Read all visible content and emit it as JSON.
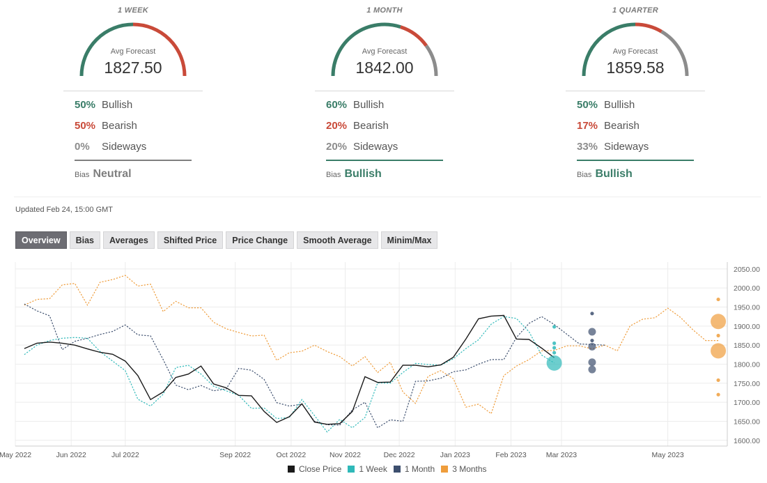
{
  "forecasts": [
    {
      "period": "1 WEEK",
      "avg_label": "Avg Forecast",
      "avg_value": "1827.50",
      "bullish": {
        "pct": "50%",
        "label": "Bullish",
        "value": 50
      },
      "bearish": {
        "pct": "50%",
        "label": "Bearish",
        "value": 50
      },
      "sideways": {
        "pct": "0%",
        "label": "Sideways",
        "value": 0
      },
      "bias_label": "Bias",
      "bias_value": "Neutral",
      "bias_color": "#7f7f7f"
    },
    {
      "period": "1 MONTH",
      "avg_label": "Avg Forecast",
      "avg_value": "1842.00",
      "bullish": {
        "pct": "60%",
        "label": "Bullish",
        "value": 60
      },
      "bearish": {
        "pct": "20%",
        "label": "Bearish",
        "value": 20
      },
      "sideways": {
        "pct": "20%",
        "label": "Sideways",
        "value": 20
      },
      "bias_label": "Bias",
      "bias_value": "Bullish",
      "bias_color": "#3a7d68"
    },
    {
      "period": "1 QUARTER",
      "avg_label": "Avg Forecast",
      "avg_value": "1859.58",
      "bullish": {
        "pct": "50%",
        "label": "Bullish",
        "value": 50
      },
      "bearish": {
        "pct": "17%",
        "label": "Bearish",
        "value": 17
      },
      "sideways": {
        "pct": "33%",
        "label": "Sideways",
        "value": 33
      },
      "bias_label": "Bias",
      "bias_value": "Bullish",
      "bias_color": "#3a7d68"
    }
  ],
  "colors": {
    "bullish": "#3a7d68",
    "bearish": "#c94a39",
    "sideways": "#8c8c8c",
    "close_price": "#1a1a1a",
    "week": "#2fb9b9",
    "month": "#3d4f6e",
    "quarter": "#ef9d3c"
  },
  "updated": "Updated Feb 24, 15:00 GMT",
  "tabs": [
    {
      "label": "Overview",
      "active": true
    },
    {
      "label": "Bias",
      "active": false
    },
    {
      "label": "Averages",
      "active": false
    },
    {
      "label": "Shifted Price",
      "active": false
    },
    {
      "label": "Price Change",
      "active": false
    },
    {
      "label": "Smooth Average",
      "active": false
    },
    {
      "label": "Minim/Max",
      "active": false
    }
  ],
  "chart_data": {
    "type": "line",
    "x_tick_labels": [
      "May 2022",
      "Jun 2022",
      "Jul 2022",
      "Sep 2022",
      "Oct 2022",
      "Nov 2022",
      "Dec 2022",
      "Jan 2023",
      "Feb 2023",
      "Mar 2023",
      "May 2023"
    ],
    "x_tick_dates": [
      "2022-05-01",
      "2022-06-01",
      "2022-07-01",
      "2022-08-31",
      "2022-10-01",
      "2022-10-31",
      "2022-11-30",
      "2022-12-31",
      "2023-01-31",
      "2023-02-28",
      "2023-04-28"
    ],
    "y_ticks": [
      1600,
      1650,
      1700,
      1750,
      1800,
      1850,
      1900,
      1950,
      2000,
      2050
    ],
    "y_tick_labels": [
      "1600.00",
      "1650.00",
      "1700.00",
      "1750.00",
      "1800.00",
      "1850.00",
      "1900.00",
      "1950.00",
      "2000.00",
      "2050.00"
    ],
    "ylim": [
      1585,
      2068
    ],
    "xlim": [
      "2022-05-01",
      "2023-05-31"
    ],
    "grid": true,
    "legend_position": "bottom-center",
    "series": [
      {
        "name": "Close Price",
        "style": "solid",
        "color": "#1a1a1a",
        "points": [
          [
            "2022-05-06",
            1841
          ],
          [
            "2022-05-13",
            1855
          ],
          [
            "2022-05-20",
            1858
          ],
          [
            "2022-05-27",
            1855
          ],
          [
            "2022-06-03",
            1850
          ],
          [
            "2022-06-10",
            1840
          ],
          [
            "2022-06-17",
            1831
          ],
          [
            "2022-06-24",
            1826
          ],
          [
            "2022-07-01",
            1808
          ],
          [
            "2022-07-08",
            1770
          ],
          [
            "2022-07-15",
            1707
          ],
          [
            "2022-07-22",
            1727
          ],
          [
            "2022-07-29",
            1765
          ],
          [
            "2022-08-05",
            1774
          ],
          [
            "2022-08-12",
            1795
          ],
          [
            "2022-08-19",
            1748
          ],
          [
            "2022-08-26",
            1738
          ],
          [
            "2022-09-02",
            1718
          ],
          [
            "2022-09-09",
            1717
          ],
          [
            "2022-09-16",
            1676
          ],
          [
            "2022-09-23",
            1647
          ],
          [
            "2022-09-30",
            1662
          ],
          [
            "2022-10-07",
            1696
          ],
          [
            "2022-10-14",
            1648
          ],
          [
            "2022-10-21",
            1642
          ],
          [
            "2022-10-28",
            1644
          ],
          [
            "2022-11-04",
            1676
          ],
          [
            "2022-11-11",
            1767
          ],
          [
            "2022-11-18",
            1752
          ],
          [
            "2022-11-25",
            1753
          ],
          [
            "2022-12-02",
            1797
          ],
          [
            "2022-12-09",
            1797
          ],
          [
            "2022-12-16",
            1793
          ],
          [
            "2022-12-23",
            1798
          ],
          [
            "2022-12-30",
            1818
          ],
          [
            "2023-01-06",
            1866
          ],
          [
            "2023-01-13",
            1919
          ],
          [
            "2023-01-20",
            1926
          ],
          [
            "2023-01-27",
            1928
          ],
          [
            "2023-02-03",
            1866
          ],
          [
            "2023-02-10",
            1865
          ],
          [
            "2023-02-17",
            1842
          ],
          [
            "2023-02-24",
            1817
          ]
        ]
      },
      {
        "name": "1 Week",
        "style": "dotted",
        "color": "#2fb9b9",
        "points": [
          [
            "2022-05-06",
            1825
          ],
          [
            "2022-05-13",
            1850
          ],
          [
            "2022-05-20",
            1862
          ],
          [
            "2022-05-27",
            1868
          ],
          [
            "2022-06-03",
            1870
          ],
          [
            "2022-06-10",
            1868
          ],
          [
            "2022-06-17",
            1833
          ],
          [
            "2022-06-24",
            1808
          ],
          [
            "2022-07-01",
            1783
          ],
          [
            "2022-07-08",
            1708
          ],
          [
            "2022-07-15",
            1690
          ],
          [
            "2022-07-22",
            1721
          ],
          [
            "2022-07-29",
            1791
          ],
          [
            "2022-08-05",
            1797
          ],
          [
            "2022-08-12",
            1774
          ],
          [
            "2022-08-19",
            1742
          ],
          [
            "2022-08-26",
            1730
          ],
          [
            "2022-09-02",
            1718
          ],
          [
            "2022-09-09",
            1684
          ],
          [
            "2022-09-16",
            1685
          ],
          [
            "2022-09-23",
            1657
          ],
          [
            "2022-09-30",
            1660
          ],
          [
            "2022-10-07",
            1707
          ],
          [
            "2022-10-14",
            1665
          ],
          [
            "2022-10-21",
            1622
          ],
          [
            "2022-10-28",
            1655
          ],
          [
            "2022-11-04",
            1633
          ],
          [
            "2022-11-11",
            1660
          ],
          [
            "2022-11-18",
            1751
          ],
          [
            "2022-11-25",
            1750
          ],
          [
            "2022-12-02",
            1778
          ],
          [
            "2022-12-09",
            1802
          ],
          [
            "2022-12-16",
            1799
          ],
          [
            "2022-12-23",
            1797
          ],
          [
            "2022-12-30",
            1814
          ],
          [
            "2023-01-06",
            1841
          ],
          [
            "2023-01-13",
            1864
          ],
          [
            "2023-01-20",
            1905
          ],
          [
            "2023-01-27",
            1925
          ],
          [
            "2023-02-03",
            1920
          ],
          [
            "2023-02-10",
            1885
          ],
          [
            "2023-02-17",
            1824
          ],
          [
            "2023-02-24",
            1803
          ]
        ]
      },
      {
        "name": "1 Month",
        "style": "dotted",
        "color": "#3d4f6e",
        "points": [
          [
            "2022-05-06",
            1958
          ],
          [
            "2022-05-13",
            1940
          ],
          [
            "2022-05-20",
            1927
          ],
          [
            "2022-05-27",
            1838
          ],
          [
            "2022-06-03",
            1860
          ],
          [
            "2022-06-10",
            1868
          ],
          [
            "2022-06-17",
            1878
          ],
          [
            "2022-06-24",
            1886
          ],
          [
            "2022-07-01",
            1903
          ],
          [
            "2022-07-08",
            1877
          ],
          [
            "2022-07-15",
            1874
          ],
          [
            "2022-07-22",
            1812
          ],
          [
            "2022-07-29",
            1745
          ],
          [
            "2022-08-05",
            1733
          ],
          [
            "2022-08-12",
            1744
          ],
          [
            "2022-08-19",
            1730
          ],
          [
            "2022-08-26",
            1735
          ],
          [
            "2022-09-02",
            1789
          ],
          [
            "2022-09-09",
            1784
          ],
          [
            "2022-09-16",
            1760
          ],
          [
            "2022-09-23",
            1699
          ],
          [
            "2022-09-30",
            1690
          ],
          [
            "2022-10-07",
            1695
          ],
          [
            "2022-10-14",
            1650
          ],
          [
            "2022-10-21",
            1641
          ],
          [
            "2022-10-28",
            1640
          ],
          [
            "2022-11-04",
            1680
          ],
          [
            "2022-11-11",
            1700
          ],
          [
            "2022-11-18",
            1633
          ],
          [
            "2022-11-25",
            1654
          ],
          [
            "2022-12-02",
            1650
          ],
          [
            "2022-12-09",
            1755
          ],
          [
            "2022-12-16",
            1756
          ],
          [
            "2022-12-23",
            1763
          ],
          [
            "2022-12-30",
            1780
          ],
          [
            "2023-01-06",
            1785
          ],
          [
            "2023-01-13",
            1800
          ],
          [
            "2023-01-20",
            1812
          ],
          [
            "2023-01-27",
            1812
          ],
          [
            "2023-02-03",
            1870
          ],
          [
            "2023-02-10",
            1907
          ],
          [
            "2023-02-17",
            1925
          ],
          [
            "2023-02-24",
            1904
          ],
          [
            "2023-03-10",
            1853
          ],
          [
            "2023-03-24",
            1850
          ]
        ]
      },
      {
        "name": "3 Months",
        "style": "dotted",
        "color": "#ef9d3c",
        "points": [
          [
            "2022-05-06",
            1955
          ],
          [
            "2022-05-13",
            1970
          ],
          [
            "2022-05-20",
            1972
          ],
          [
            "2022-05-27",
            2008
          ],
          [
            "2022-06-03",
            2012
          ],
          [
            "2022-06-10",
            1955
          ],
          [
            "2022-06-17",
            2015
          ],
          [
            "2022-06-24",
            2022
          ],
          [
            "2022-07-01",
            2033
          ],
          [
            "2022-07-08",
            2005
          ],
          [
            "2022-07-15",
            2010
          ],
          [
            "2022-07-22",
            1938
          ],
          [
            "2022-07-29",
            1965
          ],
          [
            "2022-08-05",
            1948
          ],
          [
            "2022-08-12",
            1948
          ],
          [
            "2022-08-19",
            1910
          ],
          [
            "2022-08-26",
            1893
          ],
          [
            "2022-09-02",
            1883
          ],
          [
            "2022-09-09",
            1874
          ],
          [
            "2022-09-16",
            1876
          ],
          [
            "2022-09-23",
            1810
          ],
          [
            "2022-09-30",
            1830
          ],
          [
            "2022-10-07",
            1834
          ],
          [
            "2022-10-14",
            1850
          ],
          [
            "2022-10-21",
            1833
          ],
          [
            "2022-10-28",
            1820
          ],
          [
            "2022-11-04",
            1795
          ],
          [
            "2022-11-11",
            1820
          ],
          [
            "2022-11-18",
            1778
          ],
          [
            "2022-11-25",
            1805
          ],
          [
            "2022-12-02",
            1727
          ],
          [
            "2022-12-09",
            1697
          ],
          [
            "2022-12-16",
            1768
          ],
          [
            "2022-12-23",
            1783
          ],
          [
            "2022-12-30",
            1762
          ],
          [
            "2023-01-06",
            1687
          ],
          [
            "2023-01-13",
            1695
          ],
          [
            "2023-01-20",
            1670
          ],
          [
            "2023-01-27",
            1770
          ],
          [
            "2023-02-03",
            1795
          ],
          [
            "2023-02-10",
            1812
          ],
          [
            "2023-02-17",
            1835
          ],
          [
            "2023-02-24",
            1836
          ],
          [
            "2023-03-03",
            1848
          ],
          [
            "2023-03-10",
            1848
          ],
          [
            "2023-03-17",
            1840
          ],
          [
            "2023-03-24",
            1850
          ],
          [
            "2023-03-31",
            1835
          ],
          [
            "2023-04-07",
            1900
          ],
          [
            "2023-04-14",
            1918
          ],
          [
            "2023-04-21",
            1922
          ],
          [
            "2023-04-28",
            1947
          ],
          [
            "2023-05-05",
            1923
          ],
          [
            "2023-05-12",
            1890
          ],
          [
            "2023-05-19",
            1862
          ],
          [
            "2023-05-26",
            1862
          ]
        ]
      }
    ],
    "forecast_dots": [
      {
        "series": "1 Week",
        "date": "2023-02-24",
        "values": [
          1898,
          1855,
          1843,
          1830
        ],
        "size": "small"
      },
      {
        "series": "1 Week",
        "date": "2023-02-24",
        "values": [
          1803
        ],
        "size": "large"
      },
      {
        "series": "1 Month",
        "date": "2023-03-17",
        "values": [
          1933,
          1862
        ],
        "size": "small"
      },
      {
        "series": "1 Month",
        "date": "2023-03-17",
        "values": [
          1885,
          1846,
          1805,
          1786
        ],
        "size": "medium"
      },
      {
        "series": "3 Months",
        "date": "2023-05-26",
        "values": [
          1970,
          1875,
          1758,
          1720
        ],
        "size": "small"
      },
      {
        "series": "3 Months",
        "date": "2023-05-26",
        "values": [
          1912,
          1835
        ],
        "size": "large"
      }
    ]
  },
  "legend": [
    {
      "label": "Close Price",
      "color": "#1a1a1a"
    },
    {
      "label": "1 Week",
      "color": "#2fb9b9"
    },
    {
      "label": "1 Month",
      "color": "#3d4f6e"
    },
    {
      "label": "3 Months",
      "color": "#ef9d3c"
    }
  ]
}
